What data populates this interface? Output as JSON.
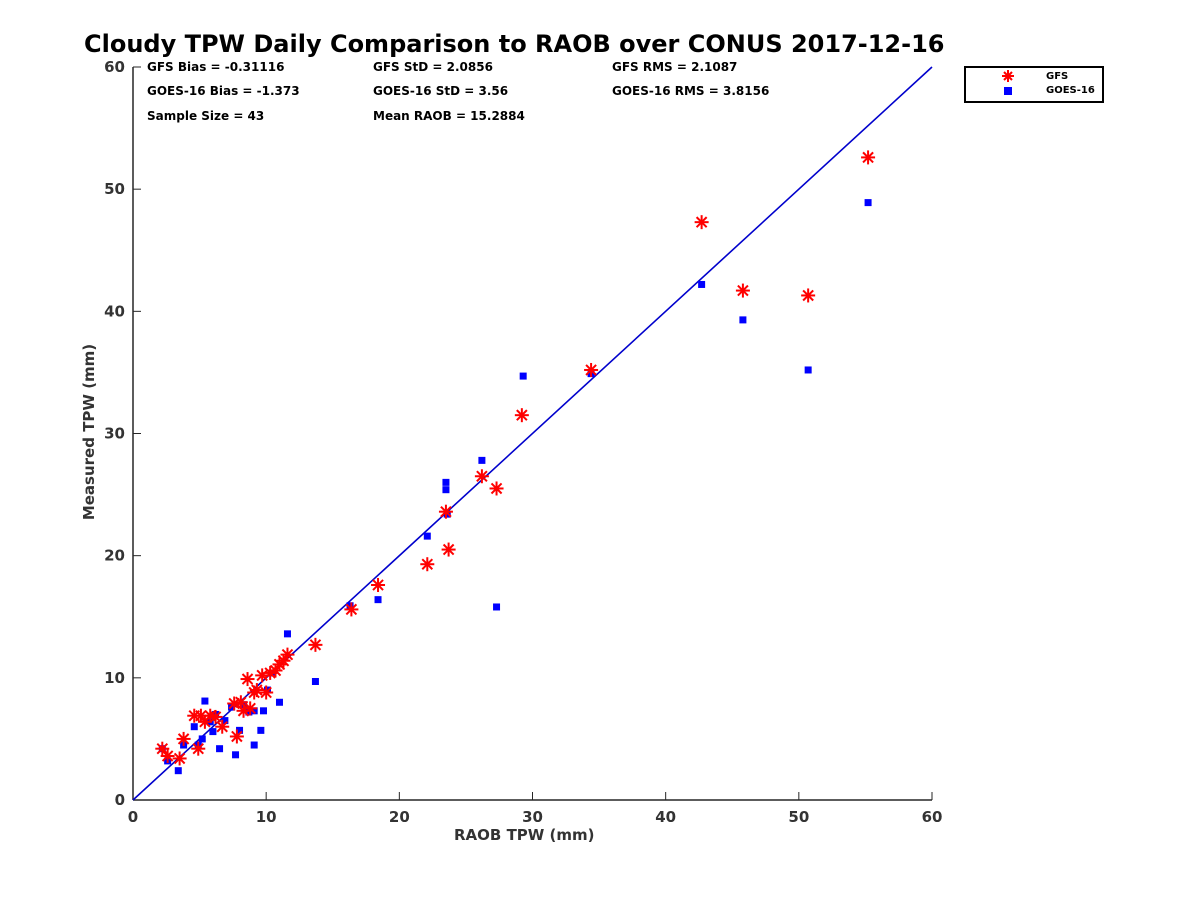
{
  "chart_data": {
    "type": "scatter",
    "title": "Cloudy TPW Daily Comparison to RAOB over CONUS 2017-12-16",
    "xlabel": "RAOB TPW (mm)",
    "ylabel": "Measured TPW (mm)",
    "xlim": [
      0,
      60
    ],
    "ylim": [
      0,
      60
    ],
    "xticks": [
      0,
      10,
      20,
      30,
      40,
      50,
      60
    ],
    "yticks": [
      0,
      10,
      20,
      30,
      40,
      50,
      60
    ],
    "grid": false,
    "legend_position": "outside top-right",
    "reference_line": {
      "from": [
        0,
        0
      ],
      "to": [
        60,
        60
      ],
      "color": "#0000cc"
    },
    "stats": {
      "gfs_bias": "GFS Bias = -0.31116",
      "gfs_std": "GFS StD = 2.0856",
      "gfs_rms": "GFS RMS = 2.1087",
      "goes_bias": "GOES-16 Bias = -1.373",
      "goes_std": "GOES-16 StD = 3.56",
      "goes_rms": "GOES-16 RMS = 3.8156",
      "sample_size": "Sample Size = 43",
      "mean_raob": "Mean RAOB = 15.2884"
    },
    "series": [
      {
        "name": "GFS",
        "marker": "asterisk",
        "color": "#ff0000",
        "points": [
          [
            2.2,
            4.2
          ],
          [
            2.6,
            3.6
          ],
          [
            3.5,
            3.4
          ],
          [
            3.8,
            5.0
          ],
          [
            4.6,
            6.9
          ],
          [
            4.9,
            4.2
          ],
          [
            5.1,
            6.9
          ],
          [
            5.4,
            6.4
          ],
          [
            5.8,
            6.9
          ],
          [
            6.2,
            6.8
          ],
          [
            6.7,
            6.0
          ],
          [
            7.6,
            7.9
          ],
          [
            7.8,
            5.2
          ],
          [
            8.1,
            8.0
          ],
          [
            8.3,
            7.3
          ],
          [
            8.6,
            9.9
          ],
          [
            8.8,
            7.5
          ],
          [
            9.1,
            8.8
          ],
          [
            9.3,
            9.0
          ],
          [
            9.7,
            10.2
          ],
          [
            10.0,
            8.8
          ],
          [
            10.3,
            10.4
          ],
          [
            10.7,
            10.6
          ],
          [
            11.0,
            11.1
          ],
          [
            11.3,
            11.4
          ],
          [
            11.6,
            11.9
          ],
          [
            13.7,
            12.7
          ],
          [
            16.4,
            15.6
          ],
          [
            18.4,
            17.6
          ],
          [
            22.1,
            19.3
          ],
          [
            23.5,
            23.6
          ],
          [
            23.7,
            20.5
          ],
          [
            26.2,
            26.5
          ],
          [
            27.3,
            25.5
          ],
          [
            29.2,
            31.5
          ],
          [
            34.4,
            35.2
          ],
          [
            42.7,
            47.3
          ],
          [
            45.8,
            41.7
          ],
          [
            50.7,
            41.3
          ],
          [
            55.2,
            52.6
          ]
        ]
      },
      {
        "name": "GOES-16",
        "marker": "square",
        "color": "#0000ff",
        "points": [
          [
            2.2,
            4.2
          ],
          [
            2.6,
            3.2
          ],
          [
            3.4,
            2.4
          ],
          [
            3.8,
            4.5
          ],
          [
            4.6,
            6.0
          ],
          [
            4.9,
            4.5
          ],
          [
            5.2,
            5.0
          ],
          [
            5.4,
            8.1
          ],
          [
            5.8,
            6.4
          ],
          [
            6.0,
            5.6
          ],
          [
            6.2,
            7.0
          ],
          [
            6.5,
            4.2
          ],
          [
            6.9,
            6.5
          ],
          [
            7.4,
            7.6
          ],
          [
            7.7,
            3.7
          ],
          [
            8.0,
            5.7
          ],
          [
            8.3,
            7.8
          ],
          [
            8.7,
            7.2
          ],
          [
            9.1,
            7.3
          ],
          [
            9.1,
            4.5
          ],
          [
            9.6,
            5.7
          ],
          [
            9.8,
            7.3
          ],
          [
            10.1,
            9.0
          ],
          [
            10.5,
            10.4
          ],
          [
            11.0,
            8.0
          ],
          [
            11.6,
            13.6
          ],
          [
            13.7,
            9.7
          ],
          [
            16.3,
            15.9
          ],
          [
            18.4,
            16.4
          ],
          [
            22.1,
            21.6
          ],
          [
            23.5,
            26.0
          ],
          [
            23.5,
            25.4
          ],
          [
            23.6,
            23.4
          ],
          [
            26.2,
            27.8
          ],
          [
            27.3,
            15.8
          ],
          [
            29.3,
            34.7
          ],
          [
            34.4,
            34.9
          ],
          [
            42.7,
            42.2
          ],
          [
            45.8,
            39.3
          ],
          [
            50.7,
            35.2
          ],
          [
            55.2,
            48.9
          ]
        ]
      }
    ]
  }
}
